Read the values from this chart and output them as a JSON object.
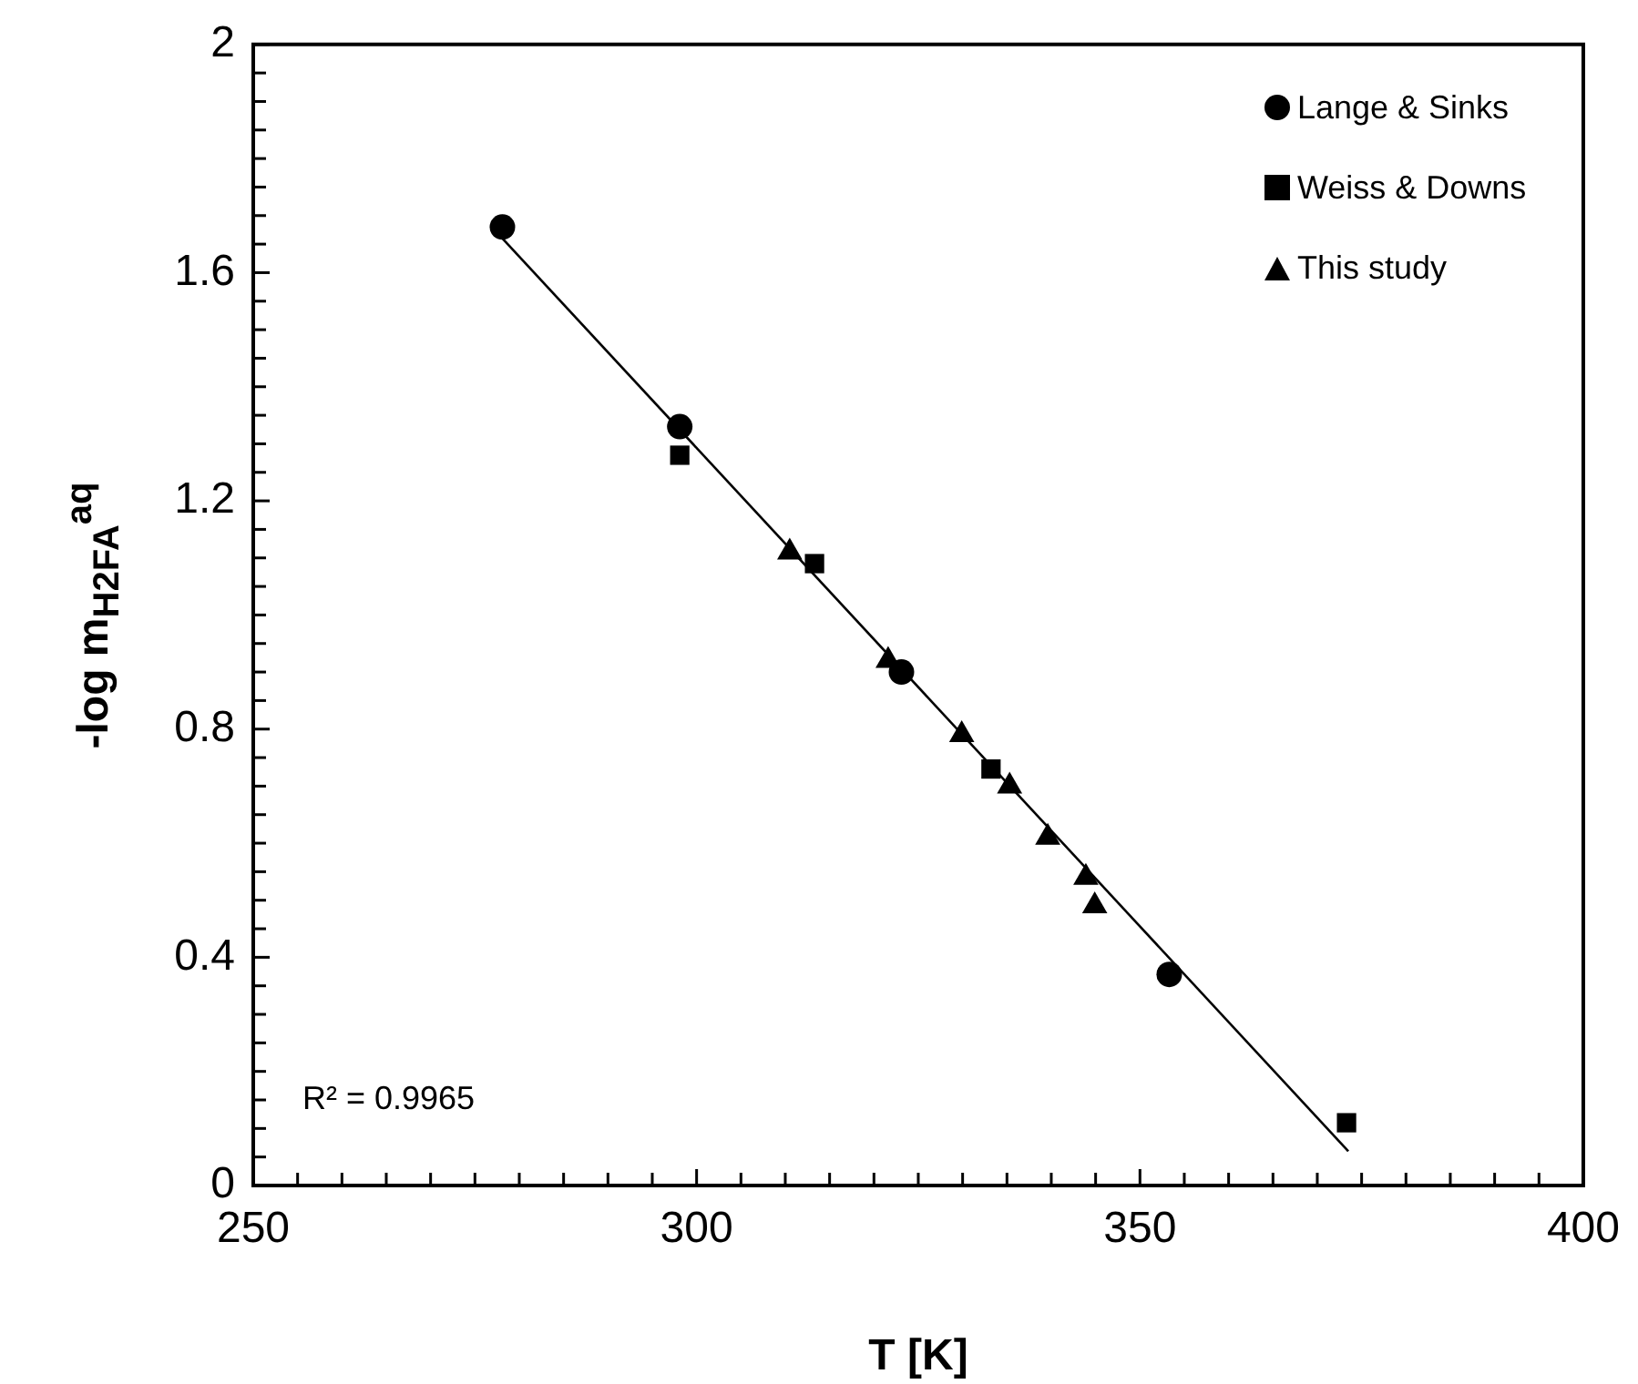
{
  "chart_data": {
    "type": "scatter",
    "xlabel": "T [K]",
    "ylabel": "-log m$_{H2FA}$$^{aq}$",
    "xlim": [
      250,
      400
    ],
    "xticks": [
      250,
      {
        "value": 255,
        "label": null
      },
      {
        "value": 260,
        "label": null
      },
      {
        "value": 265,
        "label": null
      },
      {
        "value": 270,
        "label": null
      },
      {
        "value": 275,
        "label": null
      },
      {
        "value": 280,
        "label": null
      },
      {
        "value": 285,
        "label": null
      },
      {
        "value": 290,
        "label": null
      },
      {
        "value": 295,
        "label": null
      },
      300,
      {
        "value": 305,
        "label": null
      },
      {
        "value": 310,
        "label": null
      },
      {
        "value": 315,
        "label": null
      },
      {
        "value": 320,
        "label": null
      },
      {
        "value": 325,
        "label": null
      },
      {
        "value": 330,
        "label": null
      },
      {
        "value": 335,
        "label": null
      },
      {
        "value": 340,
        "label": null
      },
      {
        "value": 345,
        "label": null
      },
      350,
      {
        "value": 355,
        "label": null
      },
      {
        "value": 360,
        "label": null
      },
      {
        "value": 365,
        "label": null
      },
      {
        "value": 370,
        "label": null
      },
      {
        "value": 375,
        "label": null
      },
      {
        "value": 380,
        "label": null
      },
      {
        "value": 385,
        "label": null
      },
      {
        "value": 390,
        "label": null
      },
      {
        "value": 395,
        "label": null
      },
      400
    ],
    "ylim": [
      0,
      2
    ],
    "yticks": [
      0,
      {
        "value": 0.05,
        "label": null
      },
      {
        "value": 0.1,
        "label": null
      },
      {
        "value": 0.15,
        "label": null
      },
      {
        "value": 0.2,
        "label": null
      },
      {
        "value": 0.25,
        "label": null
      },
      {
        "value": 0.3,
        "label": null
      },
      {
        "value": 0.35,
        "label": null
      },
      0.4,
      {
        "value": 0.45,
        "label": null
      },
      {
        "value": 0.5,
        "label": null
      },
      {
        "value": 0.55,
        "label": null
      },
      {
        "value": 0.6,
        "label": null
      },
      {
        "value": 0.65,
        "label": null
      },
      {
        "value": 0.7,
        "label": null
      },
      {
        "value": 0.75,
        "label": null
      },
      0.8,
      {
        "value": 0.85,
        "label": null
      },
      {
        "value": 0.9,
        "label": null
      },
      {
        "value": 0.95,
        "label": null
      },
      {
        "value": 1.0,
        "label": null
      },
      {
        "value": 1.05,
        "label": null
      },
      {
        "value": 1.1,
        "label": null
      },
      {
        "value": 1.15,
        "label": null
      },
      1.2,
      {
        "value": 1.25,
        "label": null
      },
      {
        "value": 1.3,
        "label": null
      },
      {
        "value": 1.35,
        "label": null
      },
      {
        "value": 1.4,
        "label": null
      },
      {
        "value": 1.45,
        "label": null
      },
      {
        "value": 1.5,
        "label": null
      },
      {
        "value": 1.55,
        "label": null
      },
      1.6,
      {
        "value": 1.65,
        "label": null
      },
      {
        "value": 1.7,
        "label": null
      },
      {
        "value": 1.75,
        "label": null
      },
      {
        "value": 1.8,
        "label": null
      },
      {
        "value": 1.85,
        "label": null
      },
      {
        "value": 1.9,
        "label": null
      },
      {
        "value": 1.95,
        "label": null
      },
      2
    ],
    "grid": false,
    "legend": "top right",
    "annotations": [
      "R² = 0.9965"
    ],
    "series": [
      {
        "name": "Lange & Sinks",
        "color": "#000000",
        "marker": "circle",
        "x": [
          278.1,
          298.1,
          323.1,
          353.3
        ],
        "values": [
          1.68,
          1.33,
          0.9,
          0.37
        ]
      },
      {
        "name": "Weiss & Downs",
        "color": "#000000",
        "marker": "square",
        "x": [
          298.1,
          313.3,
          333.2,
          373.3
        ],
        "values": [
          1.28,
          1.09,
          0.73,
          0.11
        ]
      },
      {
        "name": "This study",
        "color": "#000000",
        "marker": "triangle",
        "x": [
          310.5,
          321.6,
          329.9,
          335.3,
          339.6,
          343.9,
          344.9
        ],
        "values": [
          1.11,
          0.92,
          0.79,
          0.7,
          0.61,
          0.54,
          0.49
        ]
      },
      {
        "type": "line",
        "color": "#000000",
        "marker": "none",
        "x": [
          278.1,
          373.5
        ],
        "values": [
          1.66,
          0.06
        ]
      }
    ]
  }
}
